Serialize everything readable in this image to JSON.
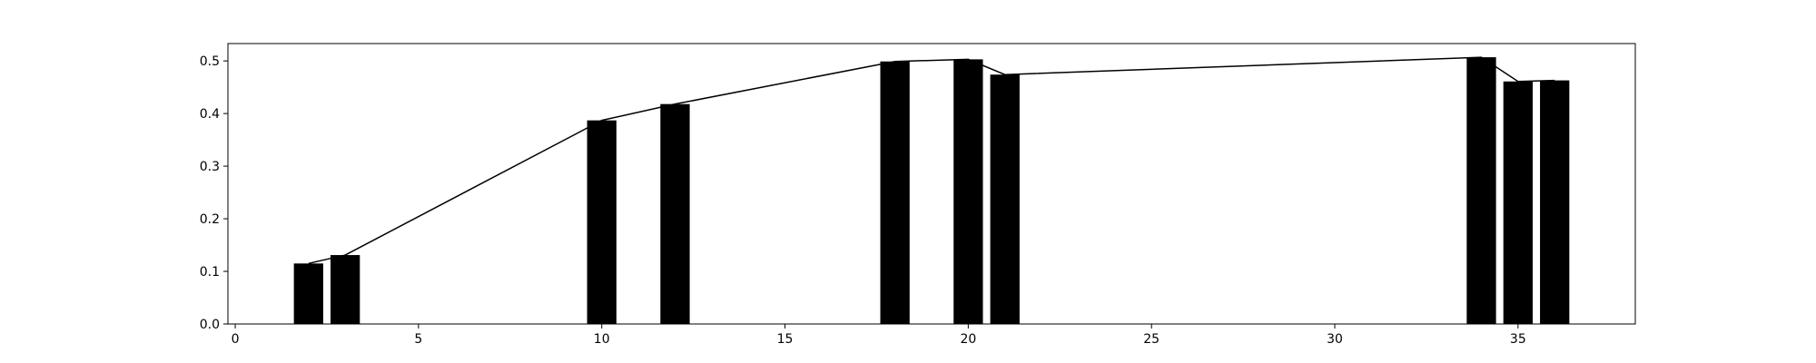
{
  "chart_data": {
    "type": "bar",
    "title": "",
    "xlabel": "",
    "ylabel": "",
    "xlim": [
      -0.2,
      38.2
    ],
    "ylim": [
      0,
      0.533
    ],
    "x_ticks": [
      0,
      5,
      10,
      15,
      20,
      25,
      30,
      35
    ],
    "y_ticks": [
      0.0,
      0.1,
      0.2,
      0.3,
      0.4,
      0.5
    ],
    "y_tick_decimals": 1,
    "grid": false,
    "legend": "none",
    "bar_width": 0.8,
    "bar_color": "#000000",
    "line_color": "#000000",
    "x": [
      2,
      3,
      10,
      12,
      18,
      20,
      21,
      34,
      35,
      36
    ],
    "values": [
      0.115,
      0.131,
      0.387,
      0.418,
      0.499,
      0.503,
      0.474,
      0.507,
      0.461,
      0.463
    ],
    "line_x": [
      2,
      3,
      10,
      12,
      18,
      20,
      21,
      34,
      35,
      36
    ],
    "line_y": [
      0.115,
      0.131,
      0.387,
      0.418,
      0.499,
      0.503,
      0.474,
      0.507,
      0.461,
      0.463
    ]
  }
}
